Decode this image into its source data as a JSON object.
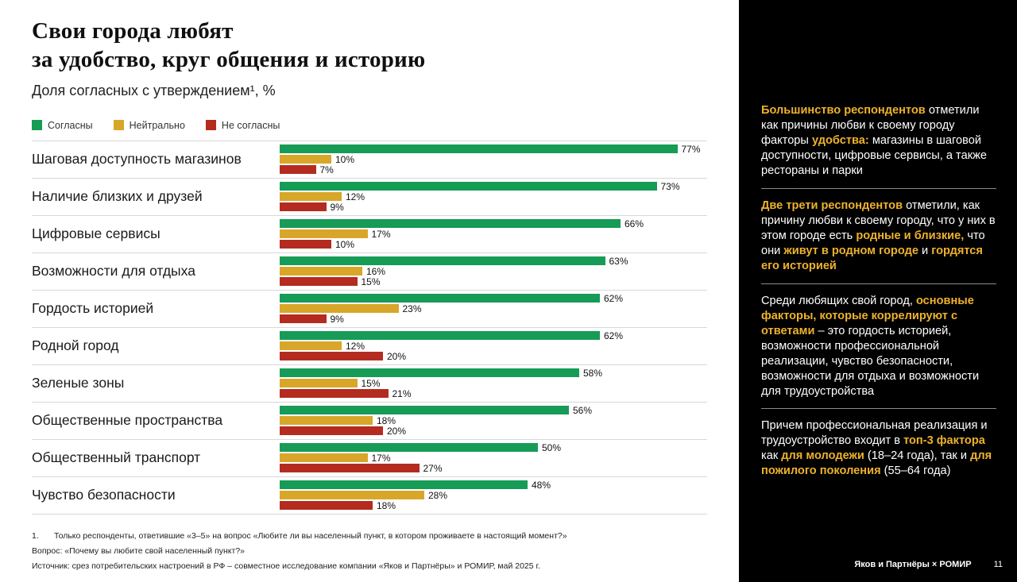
{
  "header": {
    "title_line1": "Свои города любят",
    "title_line2": "за удобство, круг общения и историю",
    "subtitle": "Доля согласных с утверждением¹, %"
  },
  "chart_data": {
    "type": "bar",
    "orientation": "horizontal",
    "title": "Свои города любят за удобство, круг общения и историю",
    "subtitle": "Доля согласных с утверждением¹, %",
    "value_suffix": "%",
    "xlim": [
      0,
      100
    ],
    "legend_position": "top",
    "categories": [
      "Шаговая доступность магазинов",
      "Наличие близких и друзей",
      "Цифровые сервисы",
      "Возможности для отдыха",
      "Гордость историей",
      "Родной город",
      "Зеленые зоны",
      "Общественные пространства",
      "Общественный транспорт",
      "Чувство безопасности"
    ],
    "series": [
      {
        "name": "Согласны",
        "color": "#169c56",
        "values": [
          77,
          73,
          66,
          63,
          62,
          62,
          58,
          56,
          50,
          48
        ]
      },
      {
        "name": "Нейтрально",
        "color": "#d8a629",
        "values": [
          10,
          12,
          17,
          16,
          23,
          12,
          15,
          18,
          17,
          28
        ]
      },
      {
        "name": "Не согласны",
        "color": "#b42b20",
        "values": [
          7,
          9,
          10,
          15,
          9,
          20,
          21,
          20,
          27,
          18
        ]
      }
    ]
  },
  "footnotes": [
    {
      "marker": "1.",
      "text": "Только респонденты, ответившие «3–5» на вопрос «Любите ли вы населенный пункт, в котором проживаете в настоящий момент?»"
    },
    {
      "marker": "",
      "text": "Вопрос: «Почему вы любите свой населенный пункт?»"
    },
    {
      "marker": "",
      "text": "Источник: срез потребительских настроений в РФ – совместное исследование компании «Яков и Партнёры» и РОМИР, май 2025 г."
    }
  ],
  "sidebar": {
    "accent_color": "#eeb22d",
    "paragraphs": [
      {
        "segments": [
          {
            "text": "Большинство респондентов",
            "hl": true
          },
          {
            "text": " отметили как причины любви к своему городу факторы ",
            "hl": false
          },
          {
            "text": "удобства:",
            "hl": true
          },
          {
            "text": " магазины в шаговой доступности, цифровые сервисы, а также рестораны и парки",
            "hl": false
          }
        ]
      },
      {
        "segments": [
          {
            "text": "Две трети респондентов",
            "hl": true
          },
          {
            "text": " отметили, как причину любви к своему городу, что у них в этом городе есть ",
            "hl": false
          },
          {
            "text": "родные и близкие,",
            "hl": true
          },
          {
            "text": " что они ",
            "hl": false
          },
          {
            "text": "живут в родном городе",
            "hl": true
          },
          {
            "text": " и ",
            "hl": false
          },
          {
            "text": "гордятся его историей",
            "hl": true
          }
        ]
      },
      {
        "segments": [
          {
            "text": "Среди любящих свой город, ",
            "hl": false
          },
          {
            "text": "основные факторы, которые коррелируют с ответами",
            "hl": true
          },
          {
            "text": " – это гордость историей, возможности профессиональной реализации, чувство безопасности, возможности для отдыха и возможности для трудоустройства",
            "hl": false
          }
        ]
      },
      {
        "segments": [
          {
            "text": "Причем профессиональная реализация и трудоустройство входит в ",
            "hl": false
          },
          {
            "text": "топ-3 фактора",
            "hl": true
          },
          {
            "text": " как ",
            "hl": false
          },
          {
            "text": "для молодежи",
            "hl": true
          },
          {
            "text": " (18–24 года), так и ",
            "hl": false
          },
          {
            "text": "для пожилого поколения",
            "hl": true
          },
          {
            "text": " (55–64 года)",
            "hl": false
          }
        ]
      }
    ],
    "footer": {
      "brand": "Яков и Партнёры × РОМИР",
      "page": "11"
    }
  }
}
